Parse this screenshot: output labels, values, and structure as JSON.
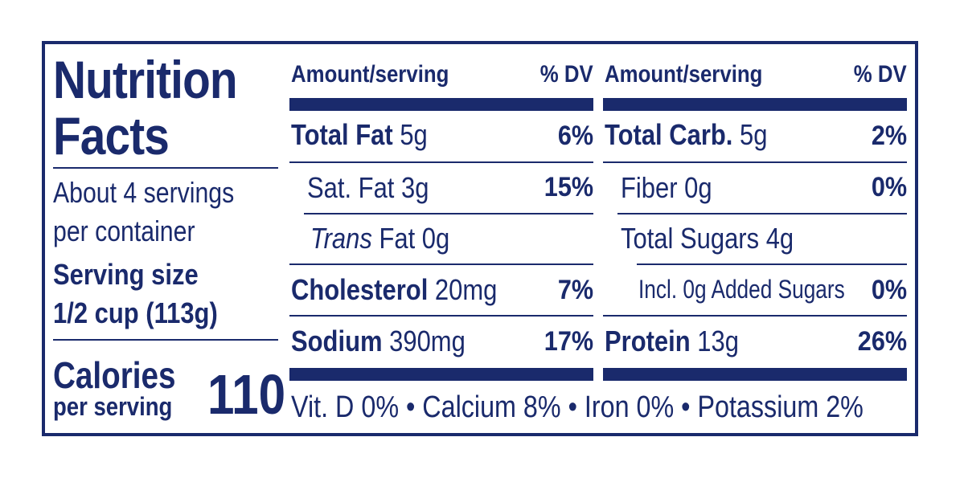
{
  "label": {
    "title_line1": "Nutrition",
    "title_line2": "Facts",
    "servings_line1": "About 4 servings",
    "servings_line2": "per container",
    "serving_size_label": "Serving size",
    "serving_size_value": "1/2 cup (113g)",
    "calories_label": "Calories",
    "calories_sub": "per serving",
    "calories_value": "110"
  },
  "left_column": {
    "header_amount": "Amount/serving",
    "header_dv": "% DV",
    "rows": [
      {
        "name": "Total Fat",
        "amount": "5g",
        "dv": "6%"
      },
      {
        "name": "Sat. Fat",
        "amount": "3g",
        "dv": "15%"
      },
      {
        "name_italic": "Trans",
        "name": "Fat",
        "amount": "0g",
        "dv": ""
      },
      {
        "name": "Cholesterol",
        "amount": "20mg",
        "dv": "7%"
      },
      {
        "name": "Sodium",
        "amount": "390mg",
        "dv": "17%"
      }
    ]
  },
  "right_column": {
    "header_amount": "Amount/serving",
    "header_dv": "% DV",
    "rows": [
      {
        "name": "Total Carb.",
        "amount": "5g",
        "dv": "2%"
      },
      {
        "name": "Fiber",
        "amount": "0g",
        "dv": "0%"
      },
      {
        "name": "Total Sugars",
        "amount": "4g",
        "dv": ""
      },
      {
        "name": "Incl. 0g Added Sugars",
        "amount": "",
        "dv": "0%"
      },
      {
        "name": "Protein",
        "amount": "13g",
        "dv": "26%"
      }
    ]
  },
  "footer": "Vit. D 0% • Calcium 8% • Iron 0% • Potassium 2%",
  "colors": {
    "ink": "#1a2a6c",
    "background": "#ffffff"
  }
}
